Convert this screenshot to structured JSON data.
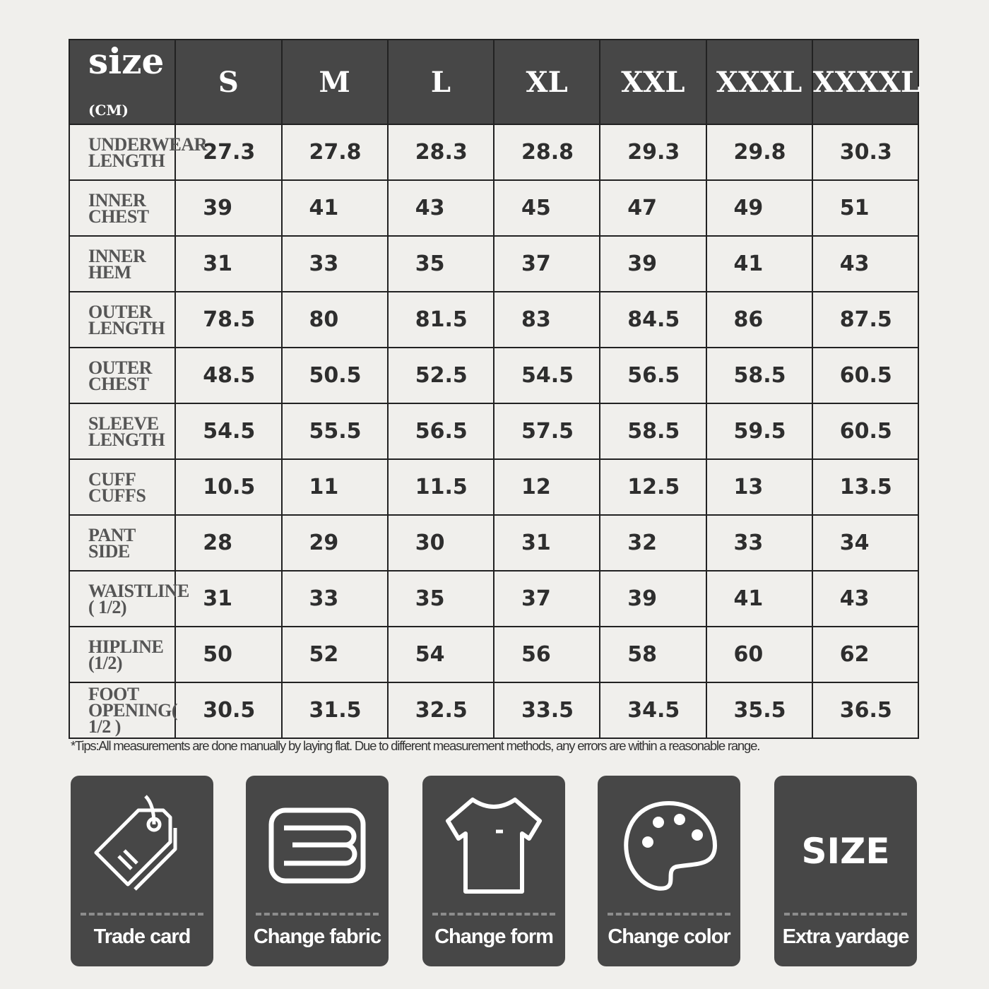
{
  "table": {
    "header_label": "size",
    "header_unit": "(CM)",
    "sizes": [
      "S",
      "M",
      "L",
      "XL",
      "XXL",
      "XXXL",
      "XXXXL"
    ],
    "rows": [
      {
        "label": "UNDERWEAR LENGTH",
        "values": [
          "27.3",
          "27.8",
          "28.3",
          "28.8",
          "29.3",
          "29.8",
          "30.3"
        ]
      },
      {
        "label": "INNER CHEST",
        "values": [
          "39",
          "41",
          "43",
          "45",
          "47",
          "49",
          "51"
        ]
      },
      {
        "label": "INNER HEM",
        "values": [
          "31",
          "33",
          "35",
          "37",
          "39",
          "41",
          "43"
        ]
      },
      {
        "label": "OUTER LENGTH",
        "values": [
          "78.5",
          "80",
          "81.5",
          "83",
          "84.5",
          "86",
          "87.5"
        ]
      },
      {
        "label": "OUTER CHEST",
        "values": [
          "48.5",
          "50.5",
          "52.5",
          "54.5",
          "56.5",
          "58.5",
          "60.5"
        ]
      },
      {
        "label": "SLEEVE LENGTH",
        "values": [
          "54.5",
          "55.5",
          "56.5",
          "57.5",
          "58.5",
          "59.5",
          "60.5"
        ]
      },
      {
        "label": "CUFF CUFFS",
        "values": [
          "10.5",
          "11",
          "11.5",
          "12",
          "12.5",
          "13",
          "13.5"
        ]
      },
      {
        "label": "PANT SIDE",
        "values": [
          "28",
          "29",
          "30",
          "31",
          "32",
          "33",
          "34"
        ]
      },
      {
        "label": "WAISTLINE ( 1/2)",
        "values": [
          "31",
          "33",
          "35",
          "37",
          "39",
          "41",
          "43"
        ]
      },
      {
        "label": "HIPLINE (1/2)",
        "values": [
          "50",
          "52",
          "54",
          "56",
          "58",
          "60",
          "62"
        ]
      },
      {
        "label": "FOOT OPENING( 1/2 )",
        "values": [
          "30.5",
          "31.5",
          "32.5",
          "33.5",
          "34.5",
          "35.5",
          "36.5"
        ]
      }
    ]
  },
  "tips": "*Tips:All measurements are done manually by laying flat. Due to different measurement methods, any errors are within a reasonable range.",
  "cards": [
    {
      "label": "Trade card",
      "icon": "tag-icon"
    },
    {
      "label": "Change fabric",
      "icon": "fabric-icon"
    },
    {
      "label": "Change form",
      "icon": "tshirt-icon"
    },
    {
      "label": "Change color",
      "icon": "palette-icon"
    },
    {
      "label": "Extra yardage",
      "icon": "size-icon",
      "icon_text": "SIZE"
    }
  ]
}
